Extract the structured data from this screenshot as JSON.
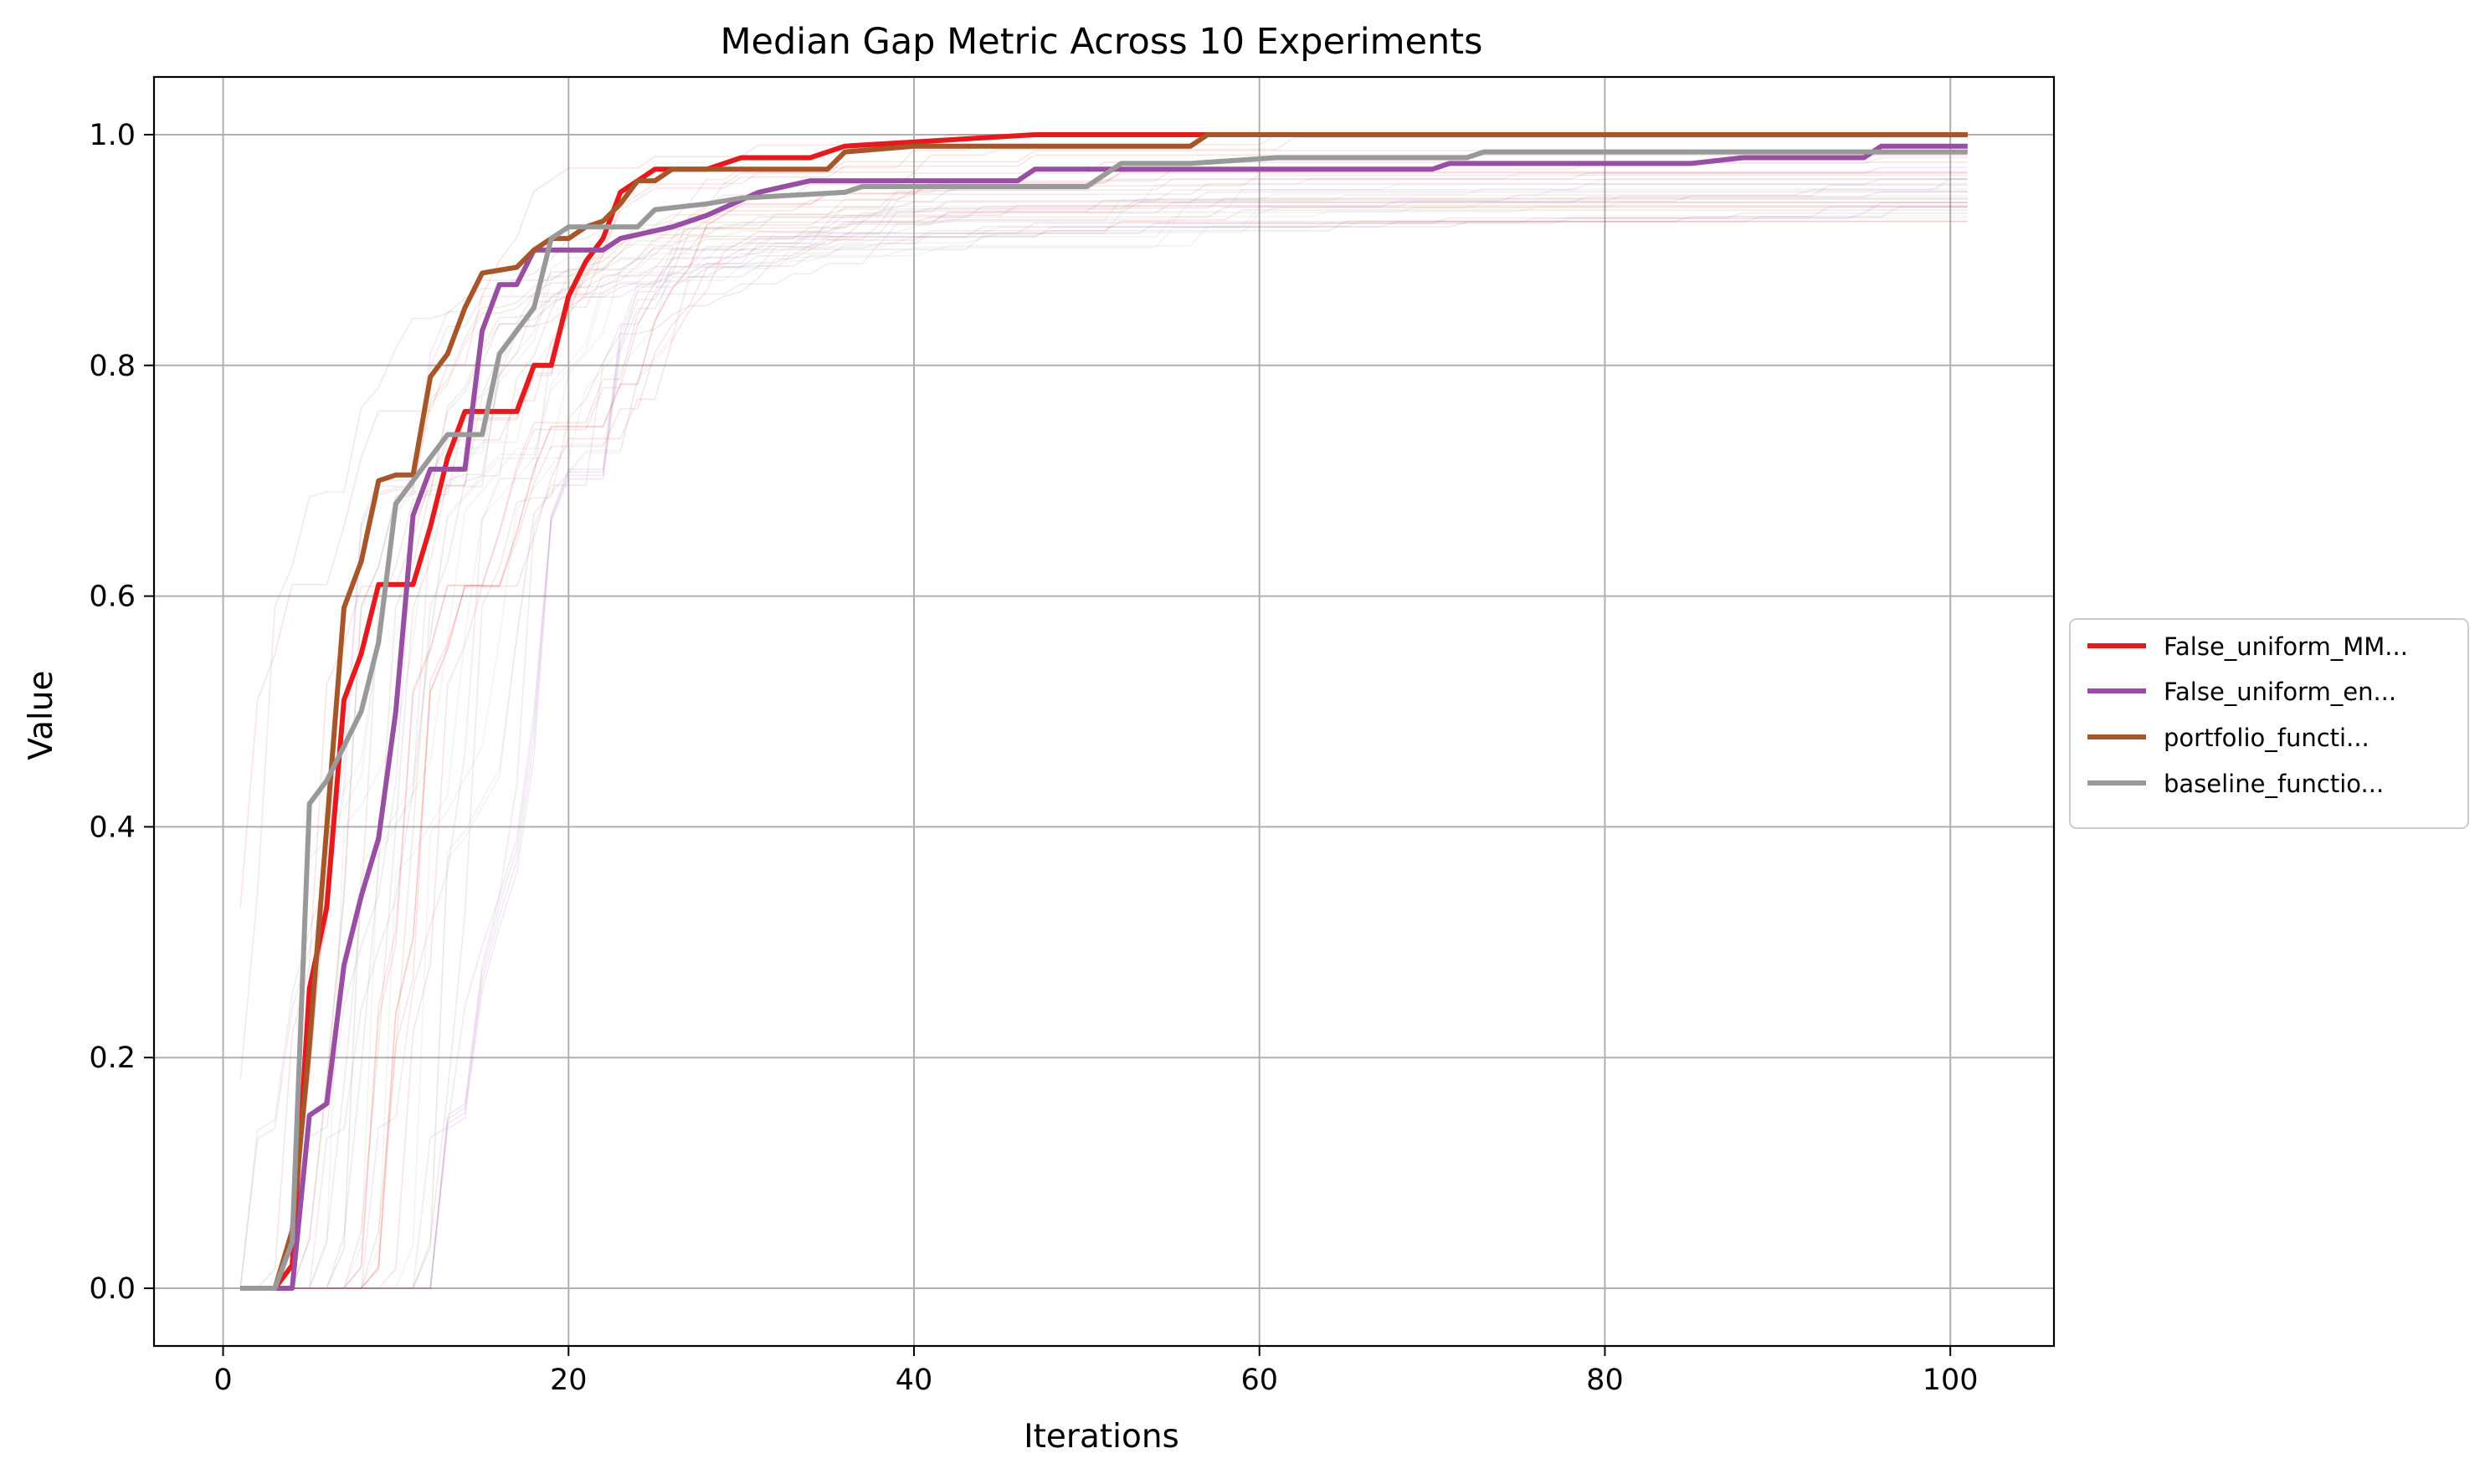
{
  "chart_data": {
    "type": "line",
    "title": "Median Gap Metric Across 10 Experiments",
    "xlabel": "Iterations",
    "ylabel": "Value",
    "xlim": [
      -4,
      106
    ],
    "ylim": [
      -0.05,
      1.05
    ],
    "xticks": [
      0,
      20,
      40,
      60,
      80,
      100
    ],
    "yticks": [
      0.0,
      0.2,
      0.4,
      0.6,
      0.8,
      1.0
    ],
    "xtick_labels": [
      "0",
      "20",
      "40",
      "60",
      "80",
      "100"
    ],
    "ytick_labels": [
      "0.0",
      "0.2",
      "0.4",
      "0.6",
      "0.8",
      "1.0"
    ],
    "grid": true,
    "legend_position": "outside-right",
    "series": [
      {
        "name": "False_uniform_MM...",
        "color": "#e41a1c",
        "points": [
          [
            1,
            0
          ],
          [
            3,
            0
          ],
          [
            4,
            0.02
          ],
          [
            5,
            0.26
          ],
          [
            6,
            0.33
          ],
          [
            7,
            0.51
          ],
          [
            8,
            0.55
          ],
          [
            9,
            0.61
          ],
          [
            11,
            0.61
          ],
          [
            12,
            0.66
          ],
          [
            13,
            0.72
          ],
          [
            14,
            0.76
          ],
          [
            17,
            0.76
          ],
          [
            18,
            0.8
          ],
          [
            19,
            0.8
          ],
          [
            20,
            0.86
          ],
          [
            21,
            0.89
          ],
          [
            22,
            0.91
          ],
          [
            23,
            0.95
          ],
          [
            24,
            0.96
          ],
          [
            25,
            0.97
          ],
          [
            26,
            0.97
          ],
          [
            28,
            0.97
          ],
          [
            30,
            0.98
          ],
          [
            34,
            0.98
          ],
          [
            36,
            0.99
          ],
          [
            47,
            1.0
          ],
          [
            101,
            1.0
          ]
        ]
      },
      {
        "name": "False_uniform_en...",
        "color": "#984ea3",
        "points": [
          [
            1,
            0
          ],
          [
            4,
            0
          ],
          [
            5,
            0.15
          ],
          [
            6,
            0.16
          ],
          [
            7,
            0.28
          ],
          [
            8,
            0.34
          ],
          [
            9,
            0.39
          ],
          [
            10,
            0.5
          ],
          [
            11,
            0.67
          ],
          [
            12,
            0.71
          ],
          [
            14,
            0.71
          ],
          [
            15,
            0.83
          ],
          [
            16,
            0.87
          ],
          [
            17,
            0.87
          ],
          [
            18,
            0.9
          ],
          [
            22,
            0.9
          ],
          [
            23,
            0.91
          ],
          [
            26,
            0.92
          ],
          [
            28,
            0.93
          ],
          [
            31,
            0.95
          ],
          [
            34,
            0.96
          ],
          [
            38,
            0.96
          ],
          [
            42,
            0.96
          ],
          [
            46,
            0.96
          ],
          [
            47,
            0.97
          ],
          [
            52,
            0.97
          ],
          [
            70,
            0.97
          ],
          [
            71,
            0.975
          ],
          [
            85,
            0.975
          ],
          [
            88,
            0.98
          ],
          [
            95,
            0.98
          ],
          [
            96,
            0.99
          ],
          [
            101,
            0.99
          ]
        ]
      },
      {
        "name": "portfolio_functi...",
        "color": "#a65628",
        "points": [
          [
            1,
            0
          ],
          [
            3,
            0
          ],
          [
            4,
            0.05
          ],
          [
            5,
            0.21
          ],
          [
            6,
            0.4
          ],
          [
            7,
            0.59
          ],
          [
            8,
            0.63
          ],
          [
            9,
            0.7
          ],
          [
            10,
            0.705
          ],
          [
            11,
            0.705
          ],
          [
            12,
            0.79
          ],
          [
            13,
            0.81
          ],
          [
            14,
            0.85
          ],
          [
            15,
            0.88
          ],
          [
            17,
            0.885
          ],
          [
            18,
            0.9
          ],
          [
            19,
            0.91
          ],
          [
            20,
            0.91
          ],
          [
            21,
            0.92
          ],
          [
            22,
            0.925
          ],
          [
            23,
            0.94
          ],
          [
            24,
            0.96
          ],
          [
            25,
            0.96
          ],
          [
            26,
            0.97
          ],
          [
            35,
            0.97
          ],
          [
            36,
            0.985
          ],
          [
            40,
            0.99
          ],
          [
            56,
            0.99
          ],
          [
            57,
            1.0
          ],
          [
            101,
            1.0
          ]
        ]
      },
      {
        "name": "baseline_functio...",
        "color": "#999999",
        "points": [
          [
            1,
            0
          ],
          [
            3,
            0
          ],
          [
            4,
            0.04
          ],
          [
            5,
            0.42
          ],
          [
            6,
            0.44
          ],
          [
            7,
            0.47
          ],
          [
            8,
            0.5
          ],
          [
            9,
            0.56
          ],
          [
            10,
            0.68
          ],
          [
            11,
            0.7
          ],
          [
            12,
            0.72
          ],
          [
            13,
            0.74
          ],
          [
            15,
            0.74
          ],
          [
            16,
            0.81
          ],
          [
            17,
            0.83
          ],
          [
            18,
            0.85
          ],
          [
            19,
            0.91
          ],
          [
            20,
            0.92
          ],
          [
            24,
            0.92
          ],
          [
            25,
            0.935
          ],
          [
            28,
            0.94
          ],
          [
            30,
            0.945
          ],
          [
            36,
            0.95
          ],
          [
            37,
            0.955
          ],
          [
            50,
            0.955
          ],
          [
            52,
            0.975
          ],
          [
            56,
            0.975
          ],
          [
            61,
            0.98
          ],
          [
            72,
            0.98
          ],
          [
            73,
            0.985
          ],
          [
            101,
            0.985
          ]
        ]
      }
    ]
  },
  "legend": {
    "items": [
      {
        "label": "False_uniform_MM...",
        "color": "#e41a1c"
      },
      {
        "label": "False_uniform_en...",
        "color": "#984ea3"
      },
      {
        "label": "portfolio_functi...",
        "color": "#a65628"
      },
      {
        "label": "baseline_functio...",
        "color": "#999999"
      }
    ]
  }
}
